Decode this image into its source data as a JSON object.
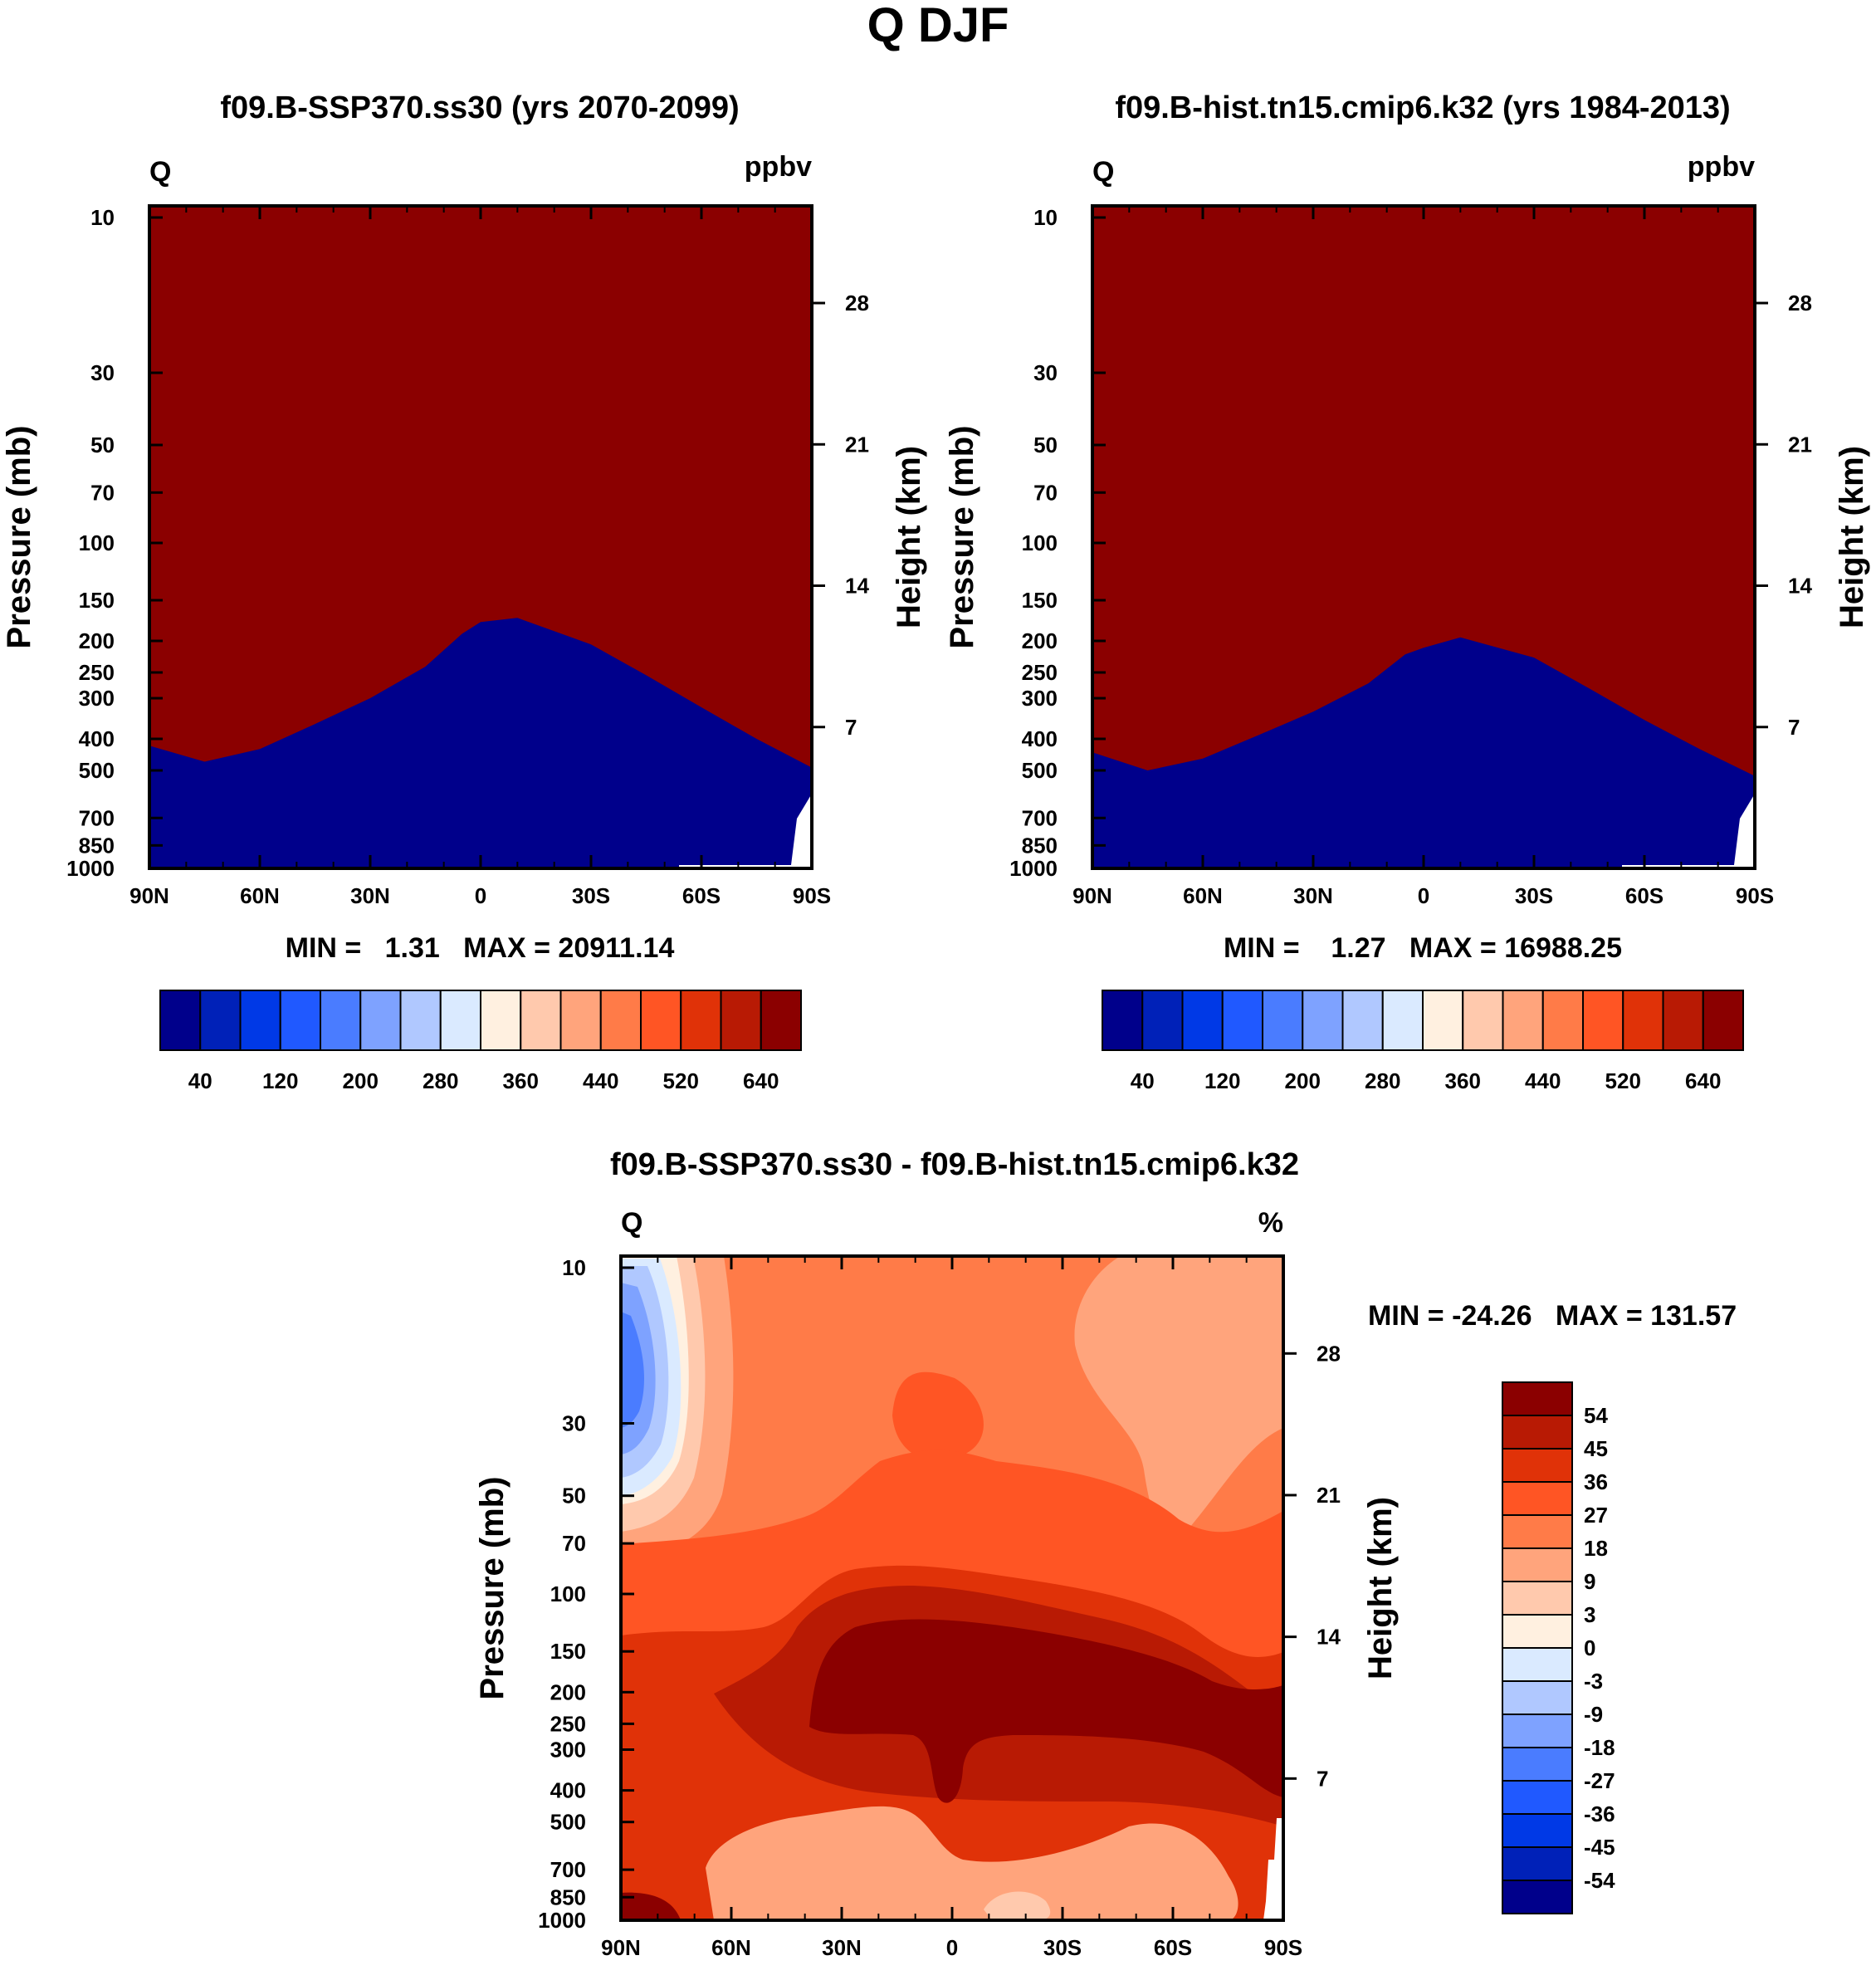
{
  "main_title": "Q DJF",
  "colors": {
    "seq": [
      "#00008b",
      "#0021b8",
      "#0039e6",
      "#2059ff",
      "#4a7cff",
      "#7ea2ff",
      "#b0c8ff",
      "#daeaff",
      "#fff0e0",
      "#ffc9ad",
      "#ffa47c",
      "#ff7b48",
      "#ff5524",
      "#e03208",
      "#b81a04",
      "#8b0000"
    ],
    "div": [
      "#8b0000",
      "#b81a04",
      "#e03208",
      "#ff5524",
      "#ff7b48",
      "#ffa47c",
      "#ffc9ad",
      "#fff0e0",
      "#daeaff",
      "#b0c8ff",
      "#7ea2ff",
      "#4a7cff",
      "#2059ff",
      "#0039e6",
      "#0021b8",
      "#00008b"
    ]
  },
  "chart_data": [
    {
      "id": "panel1",
      "type": "heatmap",
      "title": "f09.B-SSP370.ss30 (yrs 2070-2099)",
      "left_label": "Q",
      "right_label": "ppbv",
      "ylabel": "Pressure (mb)",
      "ylabel_right": "Height (km)",
      "x_ticks": [
        "90N",
        "60N",
        "30N",
        "0",
        "30S",
        "60S",
        "90S"
      ],
      "y_ticks": [
        "10",
        "30",
        "50",
        "70",
        "100",
        "150",
        "200",
        "250",
        "300",
        "400",
        "500",
        "700",
        "850",
        "1000"
      ],
      "y_ticks_right": [
        "28",
        "21",
        "14",
        "7"
      ],
      "stats": "MIN =   1.31   MAX = 20911.14",
      "colorbar_ticks": [
        "40",
        "120",
        "200",
        "280",
        "360",
        "440",
        "520",
        "640"
      ],
      "tropopause_mb": [
        [
          90,
          420
        ],
        [
          75,
          470
        ],
        [
          60,
          430
        ],
        [
          45,
          360
        ],
        [
          30,
          300
        ],
        [
          15,
          240
        ],
        [
          5,
          190
        ],
        [
          0,
          175
        ],
        [
          -10,
          170
        ],
        [
          -30,
          205
        ],
        [
          -45,
          255
        ],
        [
          -60,
          320
        ],
        [
          -75,
          400
        ],
        [
          -90,
          490
        ]
      ]
    },
    {
      "id": "panel2",
      "type": "heatmap",
      "title": "f09.B-hist.tn15.cmip6.k32 (yrs 1984-2013)",
      "left_label": "Q",
      "right_label": "ppbv",
      "ylabel": "Pressure (mb)",
      "ylabel_right": "Height (km)",
      "x_ticks": [
        "90N",
        "60N",
        "30N",
        "0",
        "30S",
        "60S",
        "90S"
      ],
      "y_ticks": [
        "10",
        "30",
        "50",
        "70",
        "100",
        "150",
        "200",
        "250",
        "300",
        "400",
        "500",
        "700",
        "850",
        "1000"
      ],
      "y_ticks_right": [
        "28",
        "21",
        "14",
        "7"
      ],
      "stats": "MIN =    1.27   MAX = 16988.25",
      "colorbar_ticks": [
        "40",
        "120",
        "200",
        "280",
        "360",
        "440",
        "520",
        "640"
      ],
      "tropopause_mb": [
        [
          90,
          440
        ],
        [
          75,
          500
        ],
        [
          60,
          460
        ],
        [
          45,
          390
        ],
        [
          30,
          330
        ],
        [
          15,
          270
        ],
        [
          5,
          220
        ],
        [
          0,
          210
        ],
        [
          -10,
          195
        ],
        [
          -30,
          225
        ],
        [
          -45,
          280
        ],
        [
          -60,
          350
        ],
        [
          -75,
          430
        ],
        [
          -90,
          520
        ]
      ]
    },
    {
      "id": "panel3",
      "type": "heatmap",
      "title": "f09.B-SSP370.ss30 - f09.B-hist.tn15.cmip6.k32",
      "left_label": "Q",
      "right_label": "%",
      "ylabel": "Pressure (mb)",
      "ylabel_right": "Height (km)",
      "x_ticks": [
        "90N",
        "60N",
        "30N",
        "0",
        "30S",
        "60S",
        "90S"
      ],
      "y_ticks": [
        "10",
        "30",
        "50",
        "70",
        "100",
        "150",
        "200",
        "250",
        "300",
        "400",
        "500",
        "700",
        "850",
        "1000"
      ],
      "y_ticks_right": [
        "28",
        "21",
        "14",
        "7"
      ],
      "stats": "MIN = -24.26   MAX = 131.57",
      "colorbar_ticks": [
        "54",
        "45",
        "36",
        "27",
        "18",
        "9",
        "3",
        "0",
        "-3",
        "-9",
        "-18",
        "-27",
        "-36",
        "-45",
        "-54"
      ]
    }
  ]
}
